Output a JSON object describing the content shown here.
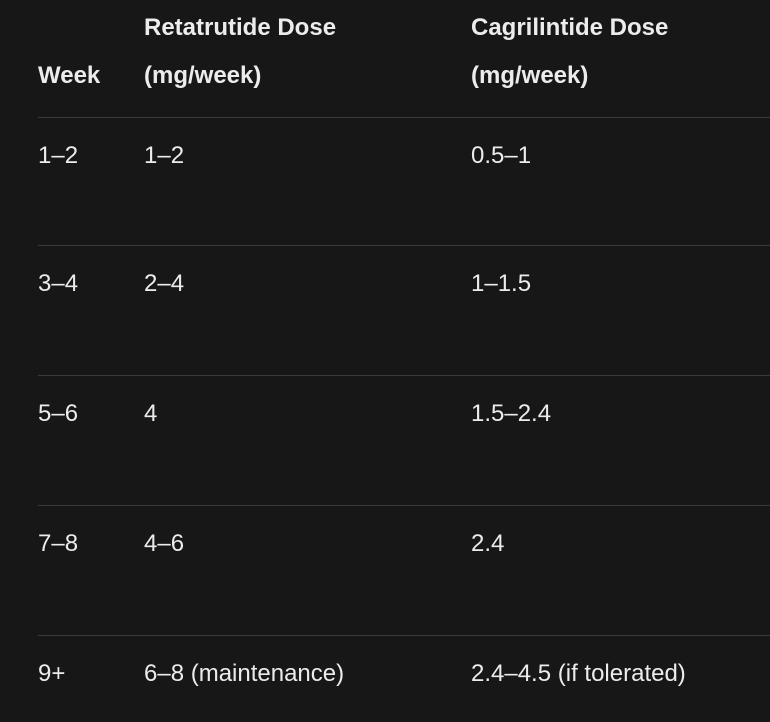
{
  "table": {
    "header": [
      "Week",
      "Retatrutide Dose (mg/week)",
      "Cagrilintide Dose (mg/week)"
    ],
    "rows": [
      [
        "1–2",
        "1–2",
        "0.5–1"
      ],
      [
        "3–4",
        "2–4",
        "1–1.5"
      ],
      [
        "5–6",
        "4",
        "1.5–2.4"
      ],
      [
        "7–8",
        "4–6",
        "2.4"
      ],
      [
        "9+",
        "6–8 (maintenance)",
        "2.4–4.5 (if tolerated)"
      ]
    ]
  }
}
